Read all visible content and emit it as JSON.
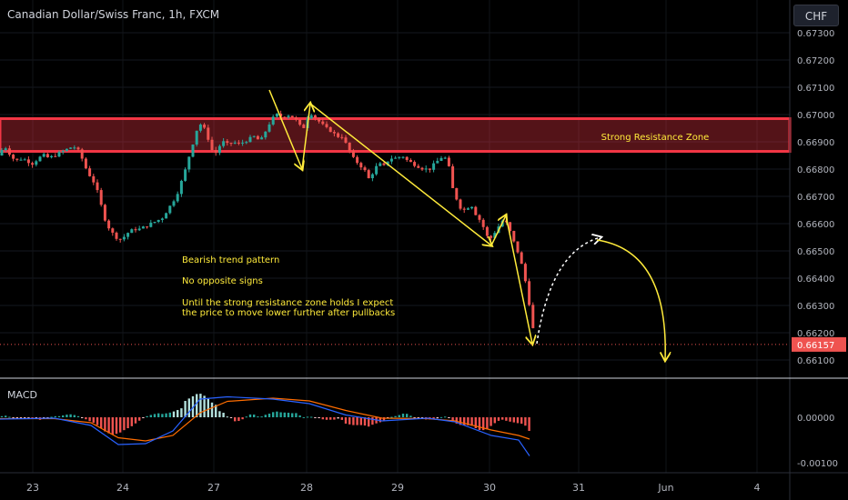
{
  "header": {
    "title": "Canadian Dollar/Swiss Franc, 1h, FXCM",
    "currency_button": "CHF"
  },
  "annotations": {
    "zone_label": "Strong Resistance Zone",
    "note_1": "Bearish trend pattern",
    "note_2": "No opposite signs",
    "note_3a": "Until the strong resistance zone holds I expect",
    "note_3b": "the price to move lower further after pullbacks"
  },
  "price_axis": {
    "ticks": [
      "0.67300",
      "0.67200",
      "0.67100",
      "0.67000",
      "0.66900",
      "0.66800",
      "0.66700",
      "0.66600",
      "0.66500",
      "0.66400",
      "0.66300",
      "0.66200",
      "0.66100"
    ],
    "current_price": "0.66157"
  },
  "macd": {
    "label": "MACD",
    "ticks": [
      "0.00000",
      "-0.00100"
    ]
  },
  "time_axis": {
    "labels": [
      "23",
      "24",
      "27",
      "28",
      "29",
      "30",
      "31",
      "Jun",
      "4"
    ]
  },
  "colors": {
    "bull": "#26a69a",
    "bear": "#ef5350",
    "zone": "#f23645",
    "arrow": "#ffeb3b",
    "macd_line": "#2962ff",
    "signal_line": "#ff6d00"
  },
  "chart_data": {
    "type": "candlestick",
    "symbol": "CADCHF",
    "timeframe": "1h",
    "resistance_zone": [
      0.66865,
      0.66985
    ],
    "last_price": 0.66157,
    "close_path": [
      [
        0,
        0.6685
      ],
      [
        4,
        0.6689
      ],
      [
        10,
        0.6686
      ],
      [
        14,
        0.6684
      ],
      [
        20,
        0.6683
      ],
      [
        24,
        0.6684
      ],
      [
        30,
        0.6683
      ],
      [
        36,
        0.6682
      ],
      [
        42,
        0.6684
      ],
      [
        48,
        0.6685
      ],
      [
        54,
        0.6684
      ],
      [
        60,
        0.6685
      ],
      [
        66,
        0.6686
      ],
      [
        72,
        0.6687
      ],
      [
        78,
        0.6688
      ],
      [
        84,
        0.6688
      ],
      [
        90,
        0.6684
      ],
      [
        96,
        0.6679
      ],
      [
        102,
        0.6676
      ],
      [
        106,
        0.6673
      ],
      [
        110,
        0.6668
      ],
      [
        116,
        0.6661
      ],
      [
        122,
        0.6657
      ],
      [
        128,
        0.6655
      ],
      [
        134,
        0.6654
      ],
      [
        138,
        0.6656
      ],
      [
        142,
        0.6657
      ],
      [
        148,
        0.6658
      ],
      [
        154,
        0.6658
      ],
      [
        160,
        0.6659
      ],
      [
        166,
        0.666
      ],
      [
        172,
        0.6661
      ],
      [
        178,
        0.6662
      ],
      [
        184,
        0.6665
      ],
      [
        190,
        0.6668
      ],
      [
        196,
        0.6672
      ],
      [
        202,
        0.6678
      ],
      [
        206,
        0.6682
      ],
      [
        210,
        0.6688
      ],
      [
        214,
        0.6691
      ],
      [
        218,
        0.6697
      ],
      [
        222,
        0.6696
      ],
      [
        226,
        0.6694
      ],
      [
        230,
        0.669
      ],
      [
        234,
        0.6686
      ],
      [
        238,
        0.6686
      ],
      [
        242,
        0.6689
      ],
      [
        246,
        0.669
      ],
      [
        250,
        0.6689
      ],
      [
        256,
        0.669
      ],
      [
        262,
        0.6689
      ],
      [
        268,
        0.669
      ],
      [
        274,
        0.6691
      ],
      [
        280,
        0.6692
      ],
      [
        286,
        0.669
      ],
      [
        292,
        0.6694
      ],
      [
        298,
        0.6698
      ],
      [
        304,
        0.67
      ],
      [
        310,
        0.6699
      ],
      [
        316,
        0.67
      ],
      [
        322,
        0.6699
      ],
      [
        328,
        0.6697
      ],
      [
        332,
        0.6694
      ],
      [
        336,
        0.6697
      ],
      [
        340,
        0.6701
      ],
      [
        346,
        0.6699
      ],
      [
        352,
        0.6697
      ],
      [
        358,
        0.6695
      ],
      [
        364,
        0.6694
      ],
      [
        370,
        0.6692
      ],
      [
        376,
        0.6692
      ],
      [
        382,
        0.6688
      ],
      [
        388,
        0.6684
      ],
      [
        394,
        0.6682
      ],
      [
        400,
        0.668
      ],
      [
        406,
        0.6676
      ],
      [
        410,
        0.6679
      ],
      [
        416,
        0.6682
      ],
      [
        422,
        0.6681
      ],
      [
        428,
        0.6684
      ],
      [
        436,
        0.6684
      ],
      [
        442,
        0.6685
      ],
      [
        448,
        0.6683
      ],
      [
        454,
        0.6682
      ],
      [
        460,
        0.6681
      ],
      [
        466,
        0.668
      ],
      [
        472,
        0.668
      ],
      [
        478,
        0.6682
      ],
      [
        484,
        0.6684
      ],
      [
        488,
        0.6685
      ],
      [
        494,
        0.668
      ],
      [
        498,
        0.6672
      ],
      [
        502,
        0.6669
      ],
      [
        506,
        0.6666
      ],
      [
        510,
        0.6665
      ],
      [
        514,
        0.6666
      ],
      [
        518,
        0.6667
      ],
      [
        522,
        0.6664
      ],
      [
        526,
        0.6662
      ],
      [
        530,
        0.666
      ],
      [
        534,
        0.6656
      ],
      [
        538,
        0.6654
      ],
      [
        542,
        0.6656
      ],
      [
        546,
        0.6658
      ],
      [
        550,
        0.666
      ],
      [
        554,
        0.6662
      ],
      [
        558,
        0.6659
      ],
      [
        562,
        0.6656
      ],
      [
        566,
        0.6652
      ],
      [
        570,
        0.6649
      ],
      [
        574,
        0.6644
      ],
      [
        578,
        0.6638
      ],
      [
        582,
        0.663
      ],
      [
        586,
        0.6621
      ],
      [
        590,
        0.6616
      ]
    ],
    "trend_arrows": [
      {
        "from": [
          296,
          0.6709
        ],
        "to": [
          332,
          0.668
        ]
      },
      {
        "from": [
          332,
          0.668
        ],
        "to": [
          341,
          0.6704
        ]
      },
      {
        "from": [
          341,
          0.6704
        ],
        "to": [
          540,
          0.6652
        ]
      },
      {
        "from": [
          540,
          0.6652
        ],
        "to": [
          556,
          0.6663
        ]
      },
      {
        "from": [
          556,
          0.6663
        ],
        "to": [
          585,
          0.6616
        ]
      }
    ],
    "projection": {
      "pullback_to": 0.6655,
      "target": 0.661
    }
  }
}
